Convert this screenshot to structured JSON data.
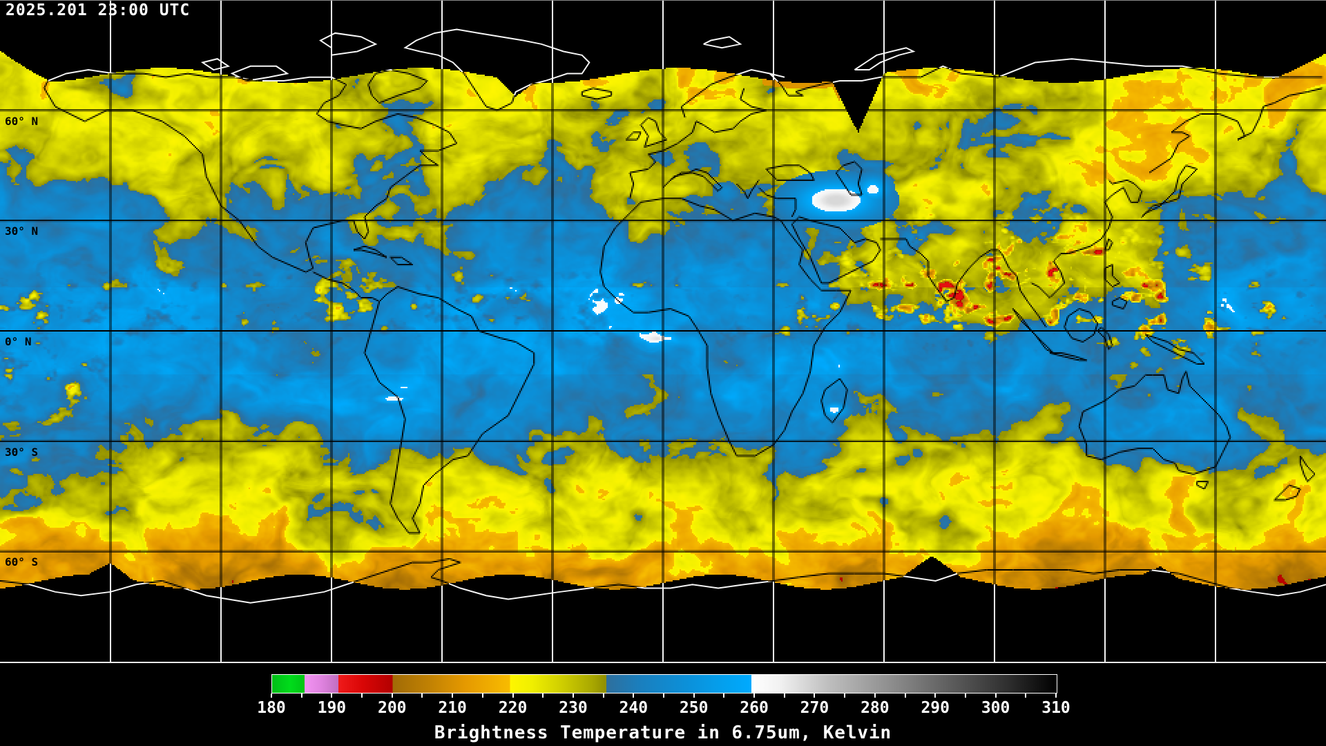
{
  "timestamp": "2025.201 23:00 UTC",
  "map": {
    "background": "#000000",
    "graticule_spacing_deg": 30,
    "graticule_color_over_data": "#000000",
    "graticule_color_over_void": "#ffffff",
    "coastline_color_over_data": "#000000",
    "coastline_color_over_void": "#ffffff",
    "latitude_labels": [
      {
        "label": "60° N",
        "lat": 60
      },
      {
        "label": "30° N",
        "lat": 30
      },
      {
        "label": "0° N",
        "lat": 0
      },
      {
        "label": "30° S",
        "lat": -30
      },
      {
        "label": "60° S",
        "lat": -60
      }
    ]
  },
  "chart_data": {
    "type": "heatmap",
    "title": "Brightness Temperature in 6.75um, Kelvin",
    "variable": "Brightness Temperature",
    "wavelength": "6.75um",
    "units": "Kelvin",
    "timestamp": "2025.201 23:00 UTC",
    "projection": "global equirectangular satellite composite",
    "lon_range": [
      -180,
      180
    ],
    "lat_range": [
      -90,
      90
    ],
    "colorbar": {
      "min": 180,
      "max": 310,
      "major_ticks": [
        180,
        190,
        200,
        210,
        220,
        230,
        240,
        250,
        260,
        270,
        280,
        290,
        300,
        310
      ],
      "minor_tick_step": 5,
      "stops": [
        [
          180,
          "#00be17"
        ],
        [
          183,
          "#00dc1b"
        ],
        [
          185.4,
          "#00c415"
        ],
        [
          185.4,
          "#f293f2"
        ],
        [
          188,
          "#e184e1"
        ],
        [
          191,
          "#c06ec0"
        ],
        [
          191,
          "#f01a1a"
        ],
        [
          195,
          "#d90606"
        ],
        [
          200,
          "#b20000"
        ],
        [
          200,
          "#a16b06"
        ],
        [
          206,
          "#c08103"
        ],
        [
          212,
          "#e59900"
        ],
        [
          219.4,
          "#f8bc00"
        ],
        [
          219.4,
          "#fff600"
        ],
        [
          223,
          "#f0ef00"
        ],
        [
          228,
          "#cfce00"
        ],
        [
          233,
          "#a9a800"
        ],
        [
          235.4,
          "#8f8e00"
        ],
        [
          235.4,
          "#2e6f9d"
        ],
        [
          241,
          "#1a7fbe"
        ],
        [
          249,
          "#0b91da"
        ],
        [
          256,
          "#02a3f2"
        ],
        [
          259.4,
          "#00aaff"
        ],
        [
          259.4,
          "#ffffff"
        ],
        [
          264,
          "#f2f2f2"
        ],
        [
          272,
          "#bfbfbf"
        ],
        [
          282,
          "#909090"
        ],
        [
          292,
          "#5f5f5f"
        ],
        [
          302,
          "#2e2e2e"
        ],
        [
          310,
          "#000000"
        ]
      ]
    }
  }
}
